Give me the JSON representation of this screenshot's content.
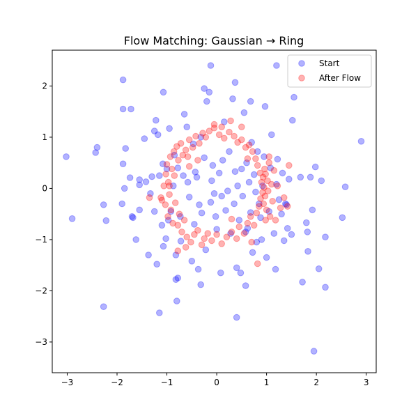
{
  "chart_data": {
    "type": "scatter",
    "title": "Flow Matching: Gaussian → Ring",
    "xlabel": "",
    "ylabel": "",
    "xlim": [
      -3.3,
      3.2
    ],
    "ylim": [
      -3.6,
      2.7
    ],
    "xticks": [
      -3,
      -2,
      -1,
      0,
      1,
      2,
      3
    ],
    "yticks": [
      -3,
      -2,
      -1,
      0,
      1,
      2
    ],
    "grid": false,
    "legend_position": "top-right",
    "series": [
      {
        "name": "Start",
        "color": "#0000ff",
        "alpha": 0.3,
        "points": [
          [
            -3.02,
            0.62
          ],
          [
            -2.9,
            -0.59
          ],
          [
            -2.4,
            0.8
          ],
          [
            -2.43,
            0.7
          ],
          [
            -2.27,
            -0.32
          ],
          [
            -2.22,
            -0.63
          ],
          [
            -2.27,
            -2.31
          ],
          [
            -1.9,
            -0.3
          ],
          [
            -1.83,
            0.78
          ],
          [
            -1.85,
            0.0
          ],
          [
            -1.88,
            0.48
          ],
          [
            -1.74,
            0.21
          ],
          [
            -1.7,
            -0.55
          ],
          [
            -1.68,
            -0.57
          ],
          [
            -1.88,
            1.55
          ],
          [
            -1.72,
            1.55
          ],
          [
            -1.62,
            -1.0
          ],
          [
            -1.55,
            -0.42
          ],
          [
            -1.55,
            0.07
          ],
          [
            -1.55,
            0.17
          ],
          [
            -1.45,
            0.97
          ],
          [
            -1.42,
            0.13
          ],
          [
            -1.33,
            -0.1
          ],
          [
            -1.3,
            0.23
          ],
          [
            -1.25,
            -0.45
          ],
          [
            -1.25,
            1.12
          ],
          [
            -1.22,
            1.33
          ],
          [
            -1.18,
            1.05
          ],
          [
            -1.15,
            0.25
          ],
          [
            -1.2,
            -1.48
          ],
          [
            -1.1,
            -0.72
          ],
          [
            -1.08,
            0.48
          ],
          [
            -1.07,
            -1.13
          ],
          [
            -1.02,
            -0.98
          ],
          [
            -1.0,
            0.38
          ],
          [
            -0.97,
            -0.62
          ],
          [
            -0.95,
            1.17
          ],
          [
            -0.92,
            -0.45
          ],
          [
            -0.87,
            0.05
          ],
          [
            -0.85,
            0.65
          ],
          [
            -0.82,
            -1.3
          ],
          [
            -0.78,
            0.4
          ],
          [
            -0.73,
            -0.55
          ],
          [
            -0.72,
            -1.03
          ],
          [
            -0.67,
            0.25
          ],
          [
            -0.65,
            1.45
          ],
          [
            -0.6,
            1.2
          ],
          [
            -0.58,
            0.12
          ],
          [
            -0.55,
            -0.17
          ],
          [
            -0.5,
            -1.42
          ],
          [
            -0.47,
            0.87
          ],
          [
            -0.45,
            -0.7
          ],
          [
            -0.4,
            0.22
          ],
          [
            -0.37,
            -1.58
          ],
          [
            -0.35,
            -0.32
          ],
          [
            -0.32,
            1.0
          ],
          [
            -0.3,
            -0.48
          ],
          [
            -0.25,
            0.6
          ],
          [
            -0.22,
            -1.2
          ],
          [
            -0.2,
            1.7
          ],
          [
            -0.15,
            1.88
          ],
          [
            -0.12,
            -0.27
          ],
          [
            -0.1,
            0.15
          ],
          [
            -0.08,
            0.45
          ],
          [
            -0.05,
            -0.1
          ],
          [
            -0.02,
            -0.55
          ],
          [
            0.0,
            -0.8
          ],
          [
            0.05,
            0.3
          ],
          [
            0.08,
            -1.65
          ],
          [
            0.1,
            -0.15
          ],
          [
            0.12,
            0.55
          ],
          [
            0.15,
            1.3
          ],
          [
            0.18,
            -0.43
          ],
          [
            0.22,
            -0.05
          ],
          [
            0.25,
            0.72
          ],
          [
            0.28,
            -0.88
          ],
          [
            0.32,
            1.75
          ],
          [
            0.35,
            -0.3
          ],
          [
            0.37,
            0.33
          ],
          [
            0.4,
            -1.55
          ],
          [
            0.42,
            0.05
          ],
          [
            0.45,
            -0.62
          ],
          [
            0.48,
            -1.65
          ],
          [
            0.5,
            0.38
          ],
          [
            0.52,
            -0.15
          ],
          [
            0.55,
            1.48
          ],
          [
            0.58,
            -1.9
          ],
          [
            0.6,
            0.5
          ],
          [
            0.62,
            -0.78
          ],
          [
            0.65,
            0.12
          ],
          [
            0.68,
            -0.47
          ],
          [
            0.7,
            0.9
          ],
          [
            0.72,
            -1.25
          ],
          [
            0.75,
            0.27
          ],
          [
            0.78,
            -0.07
          ],
          [
            0.8,
            -1.05
          ],
          [
            0.82,
            0.72
          ],
          [
            0.85,
            -0.3
          ],
          [
            0.88,
            -0.57
          ],
          [
            0.9,
            -1.0
          ],
          [
            0.92,
            0.05
          ],
          [
            0.95,
            0.62
          ],
          [
            0.97,
            1.6
          ],
          [
            1.0,
            -1.35
          ],
          [
            1.05,
            -0.45
          ],
          [
            1.08,
            0.4
          ],
          [
            1.1,
            1.05
          ],
          [
            1.15,
            -0.88
          ],
          [
            1.18,
            -1.58
          ],
          [
            1.2,
            0.08
          ],
          [
            1.22,
            0.57
          ],
          [
            1.25,
            -0.22
          ],
          [
            1.3,
            -0.5
          ],
          [
            1.32,
            0.3
          ],
          [
            1.35,
            -1.02
          ],
          [
            1.38,
            -0.3
          ],
          [
            1.42,
            -0.78
          ],
          [
            1.45,
            0.18
          ],
          [
            1.5,
            -0.9
          ],
          [
            1.52,
            1.33
          ],
          [
            1.55,
            1.78
          ],
          [
            1.68,
            0.22
          ],
          [
            1.72,
            -1.83
          ],
          [
            1.8,
            -0.67
          ],
          [
            1.82,
            -0.85
          ],
          [
            1.83,
            -1.23
          ],
          [
            1.88,
            0.22
          ],
          [
            1.92,
            -0.42
          ],
          [
            1.95,
            -3.18
          ],
          [
            1.98,
            0.42
          ],
          [
            2.05,
            -1.57
          ],
          [
            2.1,
            0.15
          ],
          [
            2.18,
            -1.93
          ],
          [
            2.18,
            -0.95
          ],
          [
            2.52,
            -0.57
          ],
          [
            2.58,
            0.03
          ],
          [
            2.9,
            0.92
          ],
          [
            1.2,
            2.4
          ],
          [
            -0.12,
            2.4
          ],
          [
            -1.88,
            2.12
          ],
          [
            -1.07,
            1.88
          ],
          [
            -0.25,
            1.95
          ],
          [
            0.37,
            2.07
          ],
          [
            0.68,
            1.7
          ],
          [
            -0.78,
            -1.75
          ],
          [
            -0.82,
            -1.78
          ],
          [
            -0.8,
            -2.2
          ],
          [
            0.4,
            -2.52
          ],
          [
            -1.15,
            -2.43
          ],
          [
            -0.32,
            -1.88
          ],
          [
            -1.37,
            -1.3
          ],
          [
            0.58,
            -0.85
          ],
          [
            -0.43,
            0.32
          ],
          [
            1.4,
            -0.32
          ]
        ]
      },
      {
        "name": "After Flow",
        "color": "#ff0000",
        "alpha": 0.3,
        "points": [
          [
            -1.12,
            -0.18
          ],
          [
            -1.1,
            -0.23
          ],
          [
            -1.06,
            0.05
          ],
          [
            -1.03,
            -0.32
          ],
          [
            -1.02,
            0.28
          ],
          [
            -1.0,
            0.47
          ],
          [
            -0.98,
            -0.55
          ],
          [
            -0.97,
            0.12
          ],
          [
            -0.95,
            -0.12
          ],
          [
            -0.93,
            0.62
          ],
          [
            -0.92,
            -0.42
          ],
          [
            -0.9,
            0.38
          ],
          [
            -0.88,
            -0.68
          ],
          [
            -0.86,
            0.72
          ],
          [
            -0.85,
            0.25
          ],
          [
            -0.83,
            -0.28
          ],
          [
            -0.8,
            0.82
          ],
          [
            -0.78,
            -0.72
          ],
          [
            -0.77,
            0.55
          ],
          [
            -0.75,
            -0.5
          ],
          [
            -0.72,
            0.88
          ],
          [
            -0.7,
            -0.85
          ],
          [
            -0.68,
            0.65
          ],
          [
            -0.65,
            -0.62
          ],
          [
            -0.62,
            0.75
          ],
          [
            -0.6,
            -0.95
          ],
          [
            -0.55,
            0.95
          ],
          [
            -0.52,
            -1.05
          ],
          [
            -0.48,
            0.8
          ],
          [
            -0.45,
            -0.9
          ],
          [
            -0.42,
            1.02
          ],
          [
            -0.38,
            -0.82
          ],
          [
            -0.35,
            0.88
          ],
          [
            -0.3,
            -1.1
          ],
          [
            -0.28,
            1.08
          ],
          [
            -0.25,
            -0.98
          ],
          [
            -0.22,
            1.0
          ],
          [
            -0.18,
            -0.88
          ],
          [
            -0.15,
            1.12
          ],
          [
            -0.1,
            -1.02
          ],
          [
            -0.05,
            1.18
          ],
          [
            0.0,
            -0.9
          ],
          [
            0.05,
            1.05
          ],
          [
            0.1,
            -1.08
          ],
          [
            0.15,
            0.98
          ],
          [
            0.2,
            -0.95
          ],
          [
            0.25,
            1.1
          ],
          [
            0.3,
            -0.85
          ],
          [
            0.35,
            1.02
          ],
          [
            0.4,
            -0.98
          ],
          [
            0.42,
            0.9
          ],
          [
            0.45,
            -0.75
          ],
          [
            0.5,
            0.95
          ],
          [
            0.55,
            -0.88
          ],
          [
            0.58,
            0.8
          ],
          [
            0.62,
            -0.68
          ],
          [
            0.65,
            0.85
          ],
          [
            0.68,
            -0.55
          ],
          [
            0.72,
            0.72
          ],
          [
            0.75,
            -0.72
          ],
          [
            0.78,
            0.58
          ],
          [
            0.8,
            -0.48
          ],
          [
            0.82,
            0.45
          ],
          [
            0.85,
            -0.35
          ],
          [
            0.87,
            0.3
          ],
          [
            0.88,
            -0.2
          ],
          [
            0.9,
            0.12
          ],
          [
            0.92,
            -0.08
          ],
          [
            0.93,
            0.22
          ],
          [
            0.94,
            -0.3
          ],
          [
            0.95,
            0.02
          ],
          [
            0.96,
            0.38
          ],
          [
            0.97,
            -0.15
          ],
          [
            0.98,
            0.28
          ],
          [
            1.0,
            -0.42
          ],
          [
            1.02,
            0.15
          ],
          [
            1.03,
            -0.05
          ],
          [
            1.05,
            0.5
          ],
          [
            1.07,
            -0.55
          ],
          [
            1.1,
            0.08
          ],
          [
            1.12,
            -0.25
          ],
          [
            1.15,
            0.35
          ],
          [
            1.18,
            -0.62
          ],
          [
            1.22,
            0.05
          ],
          [
            1.28,
            -0.38
          ],
          [
            1.35,
            -0.18
          ],
          [
            1.42,
            -0.35
          ],
          [
            1.45,
            0.45
          ],
          [
            0.82,
            -1.47
          ],
          [
            -0.78,
            -1.22
          ],
          [
            -0.55,
            0.43
          ],
          [
            -0.38,
            0.55
          ],
          [
            0.5,
            1.2
          ],
          [
            0.28,
            1.32
          ],
          [
            -0.05,
            1.25
          ],
          [
            -1.35,
            -0.18
          ],
          [
            -0.95,
            0.05
          ],
          [
            0.7,
            -1.05
          ],
          [
            0.1,
            1.2
          ],
          [
            -0.62,
            -1.15
          ],
          [
            0.98,
            -0.62
          ],
          [
            1.05,
            0.62
          ],
          [
            -0.58,
            0.62
          ],
          [
            0.62,
            0.58
          ],
          [
            0.3,
            -0.6
          ]
        ]
      }
    ]
  }
}
